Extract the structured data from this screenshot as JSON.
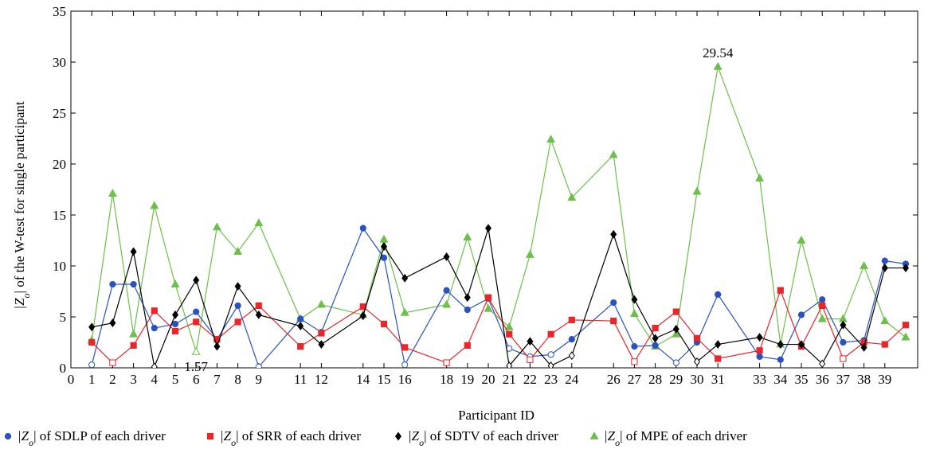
{
  "chart_data": {
    "type": "line",
    "title": "",
    "xlabel": "Participant ID",
    "ylabel": "|Z",
    "ylabel_sub": "o",
    "ylabel_rest": "| of the W-test for single participant",
    "xlim": [
      0,
      40
    ],
    "ylim": [
      0,
      35
    ],
    "yticks": [
      0,
      5,
      10,
      15,
      20,
      25,
      30,
      35
    ],
    "x": [
      1,
      2,
      3,
      4,
      5,
      6,
      7,
      8,
      9,
      11,
      12,
      14,
      15,
      16,
      18,
      19,
      20,
      21,
      22,
      23,
      24,
      26,
      27,
      28,
      29,
      30,
      31,
      33,
      34,
      35,
      36,
      37,
      38,
      39,
      40
    ],
    "xtick_labels": [
      "0",
      "1",
      "2",
      "3",
      "4",
      "5",
      "6",
      "7",
      "8",
      "9",
      "11",
      "12",
      "14",
      "15",
      "16",
      "18",
      "19",
      "20",
      "21",
      "22",
      "23",
      "24",
      "26",
      "27",
      "28",
      "29",
      "30",
      "31",
      "33",
      "34",
      "35",
      "36",
      "37",
      "38",
      "39"
    ],
    "xtick_values": [
      0,
      1,
      2,
      3,
      4,
      5,
      6,
      7,
      8,
      9,
      11,
      12,
      14,
      15,
      16,
      18,
      19,
      20,
      21,
      22,
      23,
      24,
      26,
      27,
      28,
      29,
      30,
      31,
      33,
      34,
      35,
      36,
      37,
      38,
      39
    ],
    "series": [
      {
        "name_prefix": "|Z",
        "name_sub": "o",
        "name_rest": "| of SDLP of each driver",
        "color": "#2a52be",
        "marker": "circle",
        "values": [
          0.3,
          8.2,
          8.2,
          3.9,
          4.3,
          5.5,
          2.8,
          6.1,
          0.1,
          4.8,
          3.5,
          13.7,
          10.8,
          0.3,
          7.6,
          5.7,
          6.8,
          1.9,
          1.1,
          1.3,
          2.8,
          6.4,
          2.1,
          2.2,
          0.5,
          2.5,
          7.2,
          1.1,
          0.8,
          5.2,
          6.7,
          2.5,
          2.7,
          10.5,
          10.2
        ],
        "hollow": [
          true,
          false,
          false,
          false,
          false,
          false,
          false,
          false,
          true,
          false,
          false,
          false,
          false,
          true,
          false,
          false,
          false,
          true,
          true,
          true,
          false,
          false,
          false,
          false,
          true,
          false,
          false,
          false,
          false,
          false,
          false,
          false,
          false,
          false,
          false
        ]
      },
      {
        "name_prefix": "|Z",
        "name_sub": "o",
        "name_rest": "| of SRR of each driver",
        "color": "#e8262b",
        "marker": "square",
        "values": [
          2.5,
          0.5,
          2.2,
          5.6,
          3.6,
          4.5,
          2.8,
          4.5,
          6.1,
          2.1,
          3.4,
          6.0,
          4.3,
          2.0,
          0.5,
          2.2,
          6.9,
          3.3,
          0.8,
          3.3,
          4.7,
          4.6,
          0.6,
          3.9,
          5.5,
          2.9,
          0.9,
          1.7,
          7.6,
          2.1,
          6.1,
          0.9,
          2.5,
          2.3,
          4.2
        ],
        "hollow": [
          false,
          true,
          false,
          false,
          false,
          false,
          false,
          false,
          false,
          false,
          false,
          false,
          false,
          false,
          true,
          false,
          false,
          false,
          true,
          false,
          false,
          false,
          true,
          false,
          false,
          false,
          false,
          false,
          false,
          false,
          false,
          true,
          false,
          false,
          false
        ]
      },
      {
        "name_prefix": "|Z",
        "name_sub": "o",
        "name_rest": "| of SDTV of each driver",
        "color": "#000000",
        "marker": "diamond",
        "values": [
          4.0,
          4.4,
          11.4,
          0.1,
          5.2,
          8.6,
          2.1,
          8.0,
          5.2,
          4.1,
          2.3,
          5.1,
          11.9,
          8.8,
          10.9,
          6.9,
          13.7,
          0.2,
          2.6,
          0.2,
          1.2,
          13.1,
          6.7,
          2.9,
          3.8,
          0.6,
          2.3,
          3.0,
          2.3,
          2.3,
          0.4,
          4.2,
          2.0,
          9.8,
          9.8
        ],
        "hollow": [
          false,
          false,
          false,
          true,
          false,
          false,
          false,
          false,
          false,
          false,
          false,
          false,
          false,
          false,
          false,
          false,
          false,
          true,
          false,
          true,
          true,
          false,
          false,
          false,
          false,
          true,
          false,
          false,
          false,
          false,
          true,
          false,
          false,
          false,
          false
        ]
      },
      {
        "name_prefix": "|Z",
        "name_sub": "o",
        "name_rest": "| of MPE of each driver",
        "color": "#6cbf4a",
        "marker": "triangle",
        "values": [
          2.7,
          17.1,
          3.3,
          15.9,
          8.2,
          1.57,
          13.8,
          11.4,
          14.2,
          4.8,
          6.2,
          5.2,
          12.6,
          5.4,
          6.2,
          12.8,
          5.8,
          4.0,
          11.1,
          22.4,
          16.7,
          20.9,
          5.3,
          2.1,
          3.3,
          17.3,
          29.54,
          18.6,
          2.3,
          12.5,
          4.8,
          4.8,
          10.0,
          4.6,
          3.0
        ],
        "hollow": [
          false,
          false,
          false,
          false,
          false,
          true,
          false,
          false,
          false,
          false,
          false,
          false,
          false,
          false,
          false,
          false,
          false,
          false,
          false,
          false,
          false,
          false,
          false,
          false,
          false,
          false,
          false,
          false,
          false,
          false,
          false,
          false,
          false,
          false,
          false
        ]
      }
    ],
    "annotations": [
      {
        "text": "29.54",
        "x": 31,
        "y": 29.54,
        "anchor": "above"
      },
      {
        "text": "1.57",
        "x": 6,
        "y": 1.57,
        "anchor": "below-left"
      }
    ],
    "grid": false,
    "legend_position": "bottom"
  }
}
